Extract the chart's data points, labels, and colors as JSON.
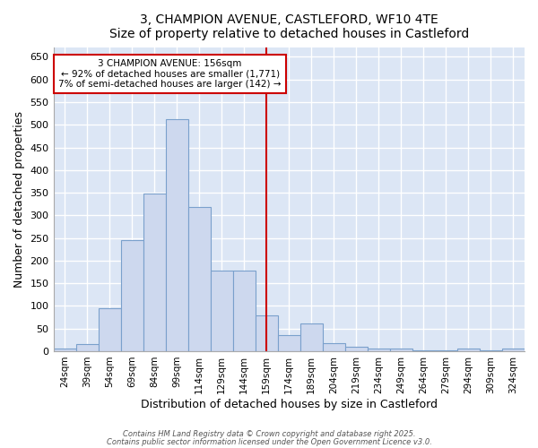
{
  "title_line1": "3, CHAMPION AVENUE, CASTLEFORD, WF10 4TE",
  "title_line2": "Size of property relative to detached houses in Castleford",
  "xlabel": "Distribution of detached houses by size in Castleford",
  "ylabel": "Number of detached properties",
  "categories": [
    "24sqm",
    "39sqm",
    "54sqm",
    "69sqm",
    "84sqm",
    "99sqm",
    "114sqm",
    "129sqm",
    "144sqm",
    "159sqm",
    "174sqm",
    "189sqm",
    "204sqm",
    "219sqm",
    "234sqm",
    "249sqm",
    "264sqm",
    "279sqm",
    "294sqm",
    "309sqm",
    "324sqm"
  ],
  "values": [
    5,
    15,
    95,
    245,
    348,
    512,
    318,
    178,
    178,
    80,
    35,
    62,
    18,
    10,
    5,
    5,
    2,
    1,
    5,
    1,
    5
  ],
  "bar_color": "#cdd8ee",
  "bar_edge_color": "#7aa0cc",
  "plot_bg_color": "#dce6f5",
  "fig_bg_color": "#ffffff",
  "grid_color": "#ffffff",
  "vline_x_index": 9,
  "vline_color": "#cc0000",
  "annotation_title": "3 CHAMPION AVENUE: 156sqm",
  "annotation_line1": "← 92% of detached houses are smaller (1,771)",
  "annotation_line2": "7% of semi-detached houses are larger (142) →",
  "annotation_box_color": "#ffffff",
  "annotation_box_edge_color": "#cc0000",
  "ylim": [
    0,
    670
  ],
  "yticks": [
    0,
    50,
    100,
    150,
    200,
    250,
    300,
    350,
    400,
    450,
    500,
    550,
    600,
    650
  ],
  "footer_line1": "Contains HM Land Registry data © Crown copyright and database right 2025.",
  "footer_line2": "Contains public sector information licensed under the Open Government Licence v3.0."
}
